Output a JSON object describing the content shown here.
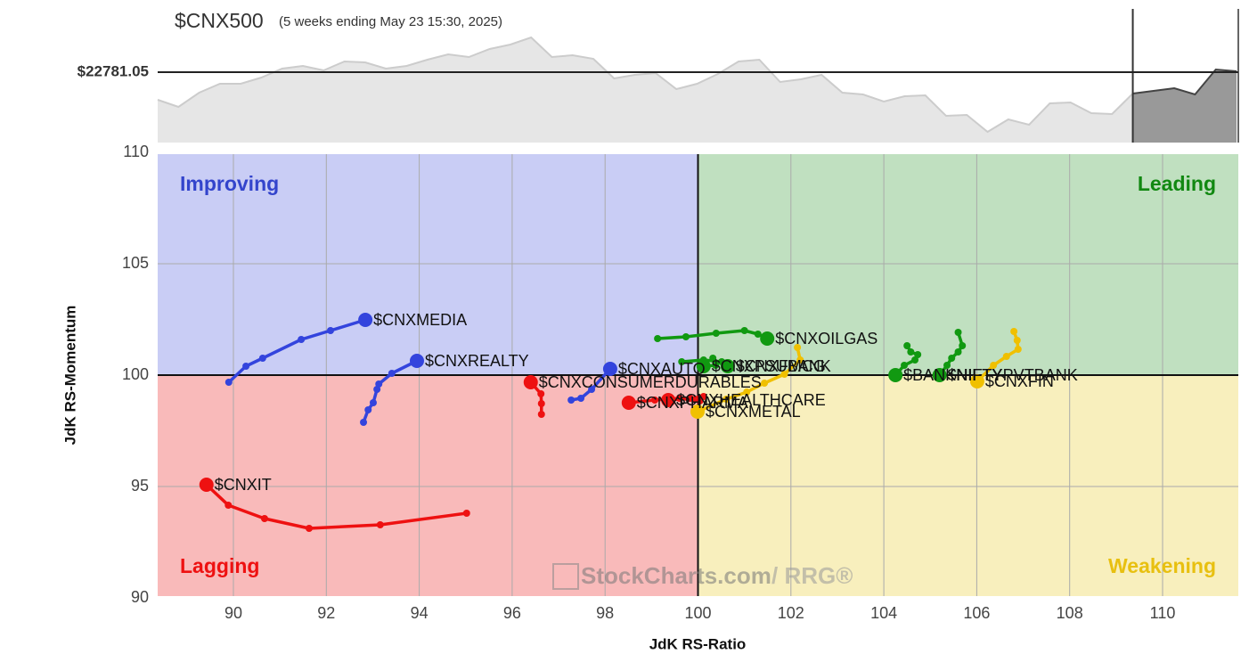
{
  "chart_data": [
    {
      "type": "line",
      "title": "$CNX500",
      "subtitle": "(5 weeks ending May 23 15:30, 2025)",
      "values": [
        22161,
        22001,
        22321,
        22521,
        22521,
        22661,
        22861,
        22921,
        22821,
        23021,
        23001,
        22861,
        22921,
        23061,
        23181,
        23121,
        23301,
        23401,
        23561,
        23121,
        23161,
        23081,
        22641,
        22721,
        22761,
        22401,
        22521,
        22741,
        23021,
        23061,
        22561,
        22621,
        22721,
        22321,
        22281,
        22121,
        22241,
        22261,
        21801,
        21821,
        21441,
        21721,
        21601,
        22081,
        22101,
        21861,
        21841,
        22301,
        22361,
        22421,
        22281,
        22841,
        22801
      ],
      "ylim": [
        21201,
        24201
      ],
      "reference": {
        "value": 22781.05,
        "label": "$22781.05"
      },
      "color": "#cccccc"
    },
    {
      "type": "scatter",
      "xlabel": "JdK RS-Ratio",
      "ylabel": "JdK RS-Momentum",
      "xlim": [
        88.37,
        111.63
      ],
      "ylim": [
        90,
        110
      ],
      "xticks": [
        90,
        92,
        94,
        96,
        98,
        100,
        102,
        104,
        106,
        108,
        110
      ],
      "yticks": [
        90,
        95,
        100,
        105,
        110
      ],
      "grid": true,
      "center": 100,
      "quadrants": [
        {
          "name": "Improving",
          "color": "#c9cdf5",
          "text_color": "#3344cc"
        },
        {
          "name": "Leading",
          "color": "#c0e0c0",
          "text_color": "#118811"
        },
        {
          "name": "Lagging",
          "color": "#f9baba",
          "text_color": "#ee1111"
        },
        {
          "name": "Weakening",
          "color": "#f8efbd",
          "text_color": "#e8c010"
        }
      ],
      "watermark": [
        "StockCharts.com",
        "/ RRG®"
      ],
      "series": [
        {
          "name": "$CNXMEDIA",
          "color": "#3344dd",
          "x": [
            89.9,
            90.27,
            90.63,
            91.46,
            92.09,
            92.84
          ],
          "y": [
            99.68,
            100.4,
            100.76,
            101.6,
            102.0,
            102.48
          ]
        },
        {
          "name": "$CNXREALTY",
          "color": "#3344dd",
          "x": [
            92.8,
            92.9,
            93.01,
            93.09,
            93.13,
            93.41,
            93.95
          ],
          "y": [
            97.88,
            98.44,
            98.76,
            99.36,
            99.6,
            100.08,
            100.64
          ]
        },
        {
          "name": "$CNXAUTO",
          "color": "#3344dd",
          "x": [
            97.27,
            97.48,
            97.71,
            98.11
          ],
          "y": [
            98.88,
            98.96,
            99.36,
            100.28
          ]
        },
        {
          "name": "$CNXIT",
          "color": "#ee1111",
          "x": [
            95.02,
            93.16,
            91.63,
            90.67,
            89.89,
            89.42
          ],
          "y": [
            93.8,
            93.28,
            93.12,
            93.56,
            94.16,
            95.08
          ]
        },
        {
          "name": "$CNXCONSUMERDURABLES",
          "color": "#ee1111",
          "x": [
            96.63,
            96.63,
            96.62,
            96.4
          ],
          "y": [
            98.24,
            98.72,
            99.16,
            99.68
          ]
        },
        {
          "name": "$CNXPHARMA",
          "color": "#ee1111",
          "x": [
            100.04,
            99.6,
            99.07,
            98.51
          ],
          "y": [
            98.84,
            98.96,
            98.88,
            98.76
          ]
        },
        {
          "name": "$CNXHEALTHCARE",
          "color": "#ee1111",
          "x": [
            100.12,
            99.83,
            99.36
          ],
          "y": [
            99.04,
            98.96,
            98.88
          ]
        },
        {
          "name": "$CNXMETAL",
          "color": "#f0c000",
          "x": [
            102.14,
            102.2,
            101.86,
            101.43,
            101.05,
            100.61,
            99.99
          ],
          "y": [
            101.24,
            100.68,
            100.04,
            99.64,
            99.24,
            98.92,
            98.36
          ]
        },
        {
          "name": "$CNXOILGAS",
          "color": "#119911",
          "x": [
            99.13,
            99.74,
            100.39,
            101.0,
            101.29,
            101.49
          ],
          "y": [
            101.64,
            101.72,
            101.88,
            102.0,
            101.84,
            101.64
          ]
        },
        {
          "name": "$CNXFMCG",
          "color": "#119911",
          "x": [
            99.65,
            100.12,
            100.51,
            100.64
          ],
          "y": [
            100.6,
            100.68,
            100.6,
            100.4
          ]
        },
        {
          "name": "$CNXPSUBANK",
          "color": "#119911",
          "x": [
            100.32,
            100.38,
            100.12
          ],
          "y": [
            100.76,
            100.44,
            100.4
          ]
        },
        {
          "name": "$BANKNIFTY",
          "color": "#119911",
          "x": [
            104.5,
            104.58,
            104.73,
            104.67,
            104.44,
            104.25
          ],
          "y": [
            101.32,
            101.04,
            100.92,
            100.68,
            100.44,
            100.0
          ]
        },
        {
          "name": "$NIFTYPVTBANK",
          "color": "#119911",
          "x": [
            105.6,
            105.69,
            105.6,
            105.46,
            105.36,
            105.2
          ],
          "y": [
            101.92,
            101.32,
            101.04,
            100.76,
            100.44,
            100.0
          ]
        },
        {
          "name": "$CNXFIN",
          "color": "#f0c000",
          "x": [
            106.8,
            106.87,
            106.89,
            106.64,
            106.36,
            106.01
          ],
          "y": [
            101.96,
            101.56,
            101.16,
            100.84,
            100.44,
            99.72
          ]
        }
      ]
    }
  ]
}
